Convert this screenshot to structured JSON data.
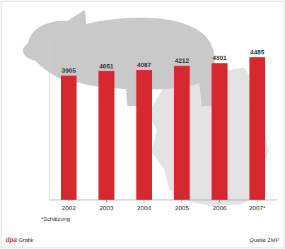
{
  "chart_data": {
    "type": "bar",
    "categories": [
      "2002",
      "2003",
      "2004",
      "2005",
      "2006",
      "2007*"
    ],
    "values": [
      3905,
      4051,
      4087,
      4212,
      4301,
      4485
    ],
    "color": "#d7282f",
    "ylim": [
      0,
      5000
    ],
    "tick_labels": "x",
    "data_labels": true,
    "annotations": [
      "*Schätzung",
      "dpa",
      "Grafik",
      "Quelle ZMP"
    ]
  }
}
